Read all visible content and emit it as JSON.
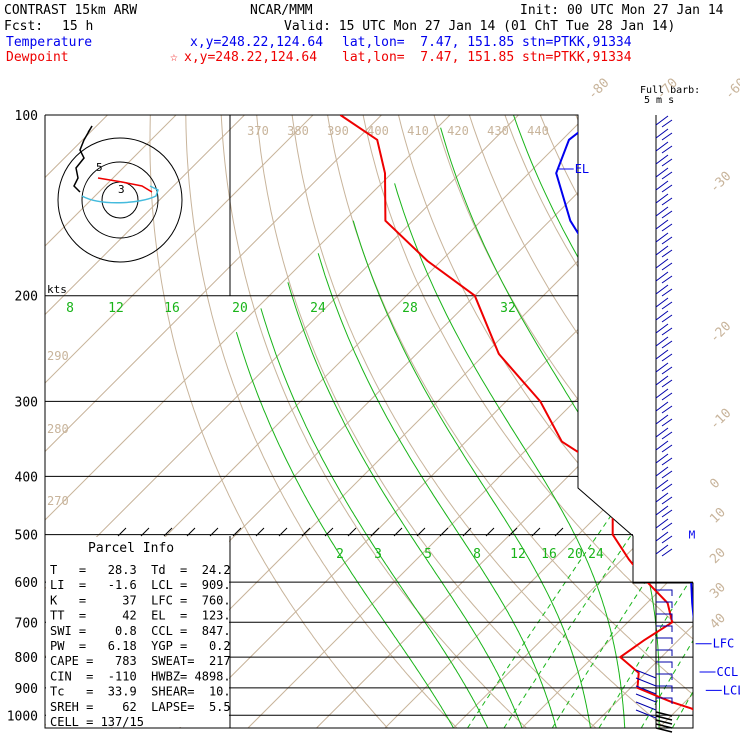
{
  "header": {
    "title": "CONTRAST 15km ARW",
    "source": "NCAR/MMM",
    "init": "Init: 00 UTC Mon 27 Jan 14",
    "fcst_label": "Fcst:",
    "fcst_value": "15 h",
    "valid": "Valid: 15 UTC Mon 27 Jan 14 (01 ChT Tue 28 Jan 14)"
  },
  "legend": {
    "temperature": {
      "label": "Temperature",
      "loc": "x,y=248.22,124.64",
      "latlon": "lat,lon=  7.47, 151.85",
      "stn": "stn=PTKK,91334",
      "color": "#0000ee"
    },
    "dewpoint": {
      "label": "Dewpoint",
      "star": "☆",
      "loc": "x,y=248.22,124.64",
      "latlon": "lat,lon=  7.47, 151.85",
      "stn": "stn=PTKK,91334",
      "color": "#ee0000"
    }
  },
  "barb_label": {
    "line1": "Full barb:",
    "line2": "5 m s"
  },
  "hodo": {
    "units": "kts",
    "ring_labels": [
      "3",
      "5"
    ]
  },
  "parcel": {
    "title": "Parcel Info",
    "rows": [
      "T   =   28.3  Td  =  24.2",
      "LI  =   -1.6  LCL =  909.",
      "K   =     37  LFC =  760.",
      "TT  =     42  EL  =  123.",
      "SWI =    0.8  CCL =  847.",
      "PW  =   6.18  YGP =   0.2",
      "CAPE =   783  SWEAT=  217",
      "CIN  =  -110  HWBZ= 4898.",
      "Tc   =  33.9  SHEAR=  10.",
      "SREH =    62  LAPSE=  5.5",
      "CELL = 137/15"
    ]
  },
  "levels": {
    "lfc": "LFC",
    "ccl": "CCL",
    "lcl": "LCL",
    "el": "EL",
    "m": "M"
  },
  "chart_data": {
    "type": "line",
    "chart_kind": "skew-T log-P sounding",
    "pressure_ticks": [
      "100",
      "200",
      "300",
      "400",
      "500",
      "600",
      "700",
      "800",
      "900",
      "1000"
    ],
    "pressure_values": [
      100,
      200,
      300,
      400,
      500,
      600,
      700,
      800,
      900,
      1000
    ],
    "isotherm_labels": [
      "-80",
      "-70",
      "-60",
      "-50",
      "-40",
      "-30",
      "-20",
      "-10",
      "0",
      "10",
      "20",
      "30",
      "40"
    ],
    "theta_labels": [
      "370",
      "380",
      "390",
      "400",
      "410",
      "420",
      "430",
      "440"
    ],
    "theta_left_labels": [
      "290",
      "280",
      "270"
    ],
    "mixing_ratio_top_labels": [
      "8",
      "12",
      "16",
      "20",
      "24",
      "28",
      "32"
    ],
    "mixing_ratio_bottom_labels": [
      "2",
      "3",
      "5",
      "8",
      "12",
      "16",
      "20",
      "24"
    ],
    "series": [
      {
        "name": "Temperature",
        "color": "#0000ee",
        "p": [
          1000,
          975,
          950,
          925,
          900,
          850,
          800,
          750,
          700,
          650,
          600,
          550,
          500,
          450,
          400,
          350,
          300,
          250,
          200,
          175,
          150,
          125,
          110,
          100
        ],
        "t": [
          28.3,
          26.0,
          24.0,
          22.3,
          20.8,
          17.9,
          15.2,
          12.5,
          9.7,
          6.6,
          3.4,
          0.0,
          -4.5,
          -9.5,
          -14.5,
          -21.0,
          -28.5,
          -38.0,
          -50.0,
          -57.5,
          -67.0,
          -76.0,
          -79.0,
          -78.0
        ]
      },
      {
        "name": "Dewpoint",
        "color": "#ee0000",
        "p": [
          1000,
          975,
          950,
          925,
          900,
          850,
          800,
          750,
          700,
          650,
          600,
          550,
          500,
          450,
          400,
          350,
          300,
          250,
          200,
          175,
          150,
          125,
          110,
          100
        ],
        "t": [
          24.2,
          22.0,
          18.0,
          14.5,
          11.0,
          9.0,
          4.0,
          5.0,
          6.5,
          3.0,
          -3.0,
          -9.0,
          -15.0,
          -19.0,
          -23.0,
          -36.0,
          -45.0,
          -58.0,
          -70.0,
          -82.0,
          -94.0,
          -101.0,
          -107.0,
          -116.0
        ]
      }
    ]
  }
}
